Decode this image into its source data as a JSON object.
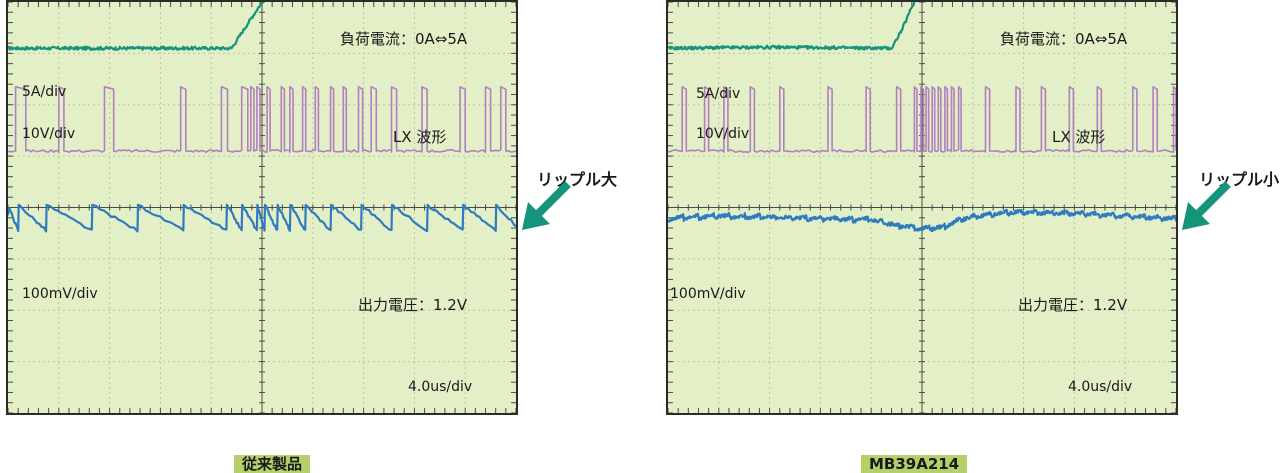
{
  "chart_data": [
    {
      "type": "line",
      "caption": "従来製品",
      "load_label": "負荷電流：0A⇔5A",
      "time_div_label": "4.0us/div",
      "grid": {
        "divisions_x": 10,
        "divisions_y": 8
      },
      "series": [
        {
          "name": "5A/div",
          "color": "#14947a",
          "x": [
            0,
            2.0,
            4.4,
            4.6,
            4.8,
            5.0,
            5.3,
            5.7,
            6.2,
            7.0,
            8.0,
            10
          ],
          "y": [
            7.1,
            7.1,
            7.1,
            7.4,
            7.7,
            8.0,
            8.25,
            8.45,
            8.55,
            8.6,
            8.65,
            8.65
          ]
        },
        {
          "name": "10V/div",
          "label": "LX 波形",
          "color": "#b27fbf",
          "pulse_type": "lx",
          "baseline_y": 5.1,
          "high_y": 6.35,
          "pulse_starts": [
            0.15,
            1.0,
            1.9,
            3.4,
            4.2,
            4.6,
            4.78,
            4.9,
            5.1,
            5.38,
            5.55,
            5.8,
            6.05,
            6.35,
            6.6,
            6.9,
            7.15,
            7.55,
            8.15,
            8.9,
            9.4,
            9.7
          ],
          "pulse_widths": [
            0.2,
            0.1,
            0.18,
            0.1,
            0.12,
            0.12,
            0.06,
            0.06,
            0.06,
            0.06,
            0.06,
            0.06,
            0.06,
            0.06,
            0.06,
            0.08,
            0.1,
            0.1,
            0.1,
            0.1,
            0.1,
            0.1
          ]
        },
        {
          "name": "100mV/div",
          "label": "出力電圧：1.2V",
          "color": "#2e7bbf",
          "pulse_type": "ripple",
          "reset_times": [
            0.2,
            0.75,
            1.65,
            2.55,
            3.45,
            4.3,
            4.6,
            4.9,
            5.05,
            5.3,
            5.55,
            5.85,
            6.35,
            6.95,
            7.55,
            8.25,
            8.95,
            9.6
          ],
          "ripple_high": 4.05,
          "ripple_low": 3.55
        }
      ]
    },
    {
      "type": "line",
      "caption": "MB39A214",
      "load_label": "負荷電流：0A⇔5A",
      "time_div_label": "4.0us/div",
      "grid": {
        "divisions_x": 10,
        "divisions_y": 8
      },
      "series": [
        {
          "name": "5A/div",
          "color": "#14947a",
          "x": [
            0,
            2.0,
            4.4,
            4.6,
            4.8,
            5.0,
            5.3,
            5.6,
            6.0,
            7.0,
            8.0,
            10
          ],
          "y": [
            7.1,
            7.12,
            7.1,
            7.45,
            7.9,
            8.3,
            8.6,
            8.65,
            8.65,
            8.65,
            8.65,
            8.65
          ]
        },
        {
          "name": "10V/div",
          "label": "LX 波形",
          "color": "#b27fbf",
          "pulse_type": "lx",
          "baseline_y": 5.1,
          "high_y": 6.35,
          "pulse_starts": [
            0.28,
            0.72,
            1.1,
            1.62,
            2.2,
            3.15,
            3.9,
            4.5,
            4.85,
            4.98,
            5.08,
            5.2,
            5.32,
            5.45,
            5.58,
            5.72,
            6.25,
            6.85,
            7.35,
            7.9,
            8.45,
            9.15,
            9.55,
            9.95
          ],
          "pulse_widths": [
            0.08,
            0.08,
            0.08,
            0.08,
            0.08,
            0.08,
            0.08,
            0.08,
            0.05,
            0.05,
            0.05,
            0.05,
            0.05,
            0.05,
            0.05,
            0.05,
            0.08,
            0.08,
            0.08,
            0.08,
            0.08,
            0.08,
            0.08,
            0.05
          ]
        },
        {
          "name": "100mV/div",
          "label": "出力電圧：1.2V",
          "color": "#2e7bbf",
          "pulse_type": "ripple",
          "x": [
            0,
            1.0,
            2.0,
            3.0,
            4.0,
            4.5,
            5.0,
            5.4,
            5.8,
            6.5,
            7.0,
            8.0,
            9.0,
            10
          ],
          "y": [
            3.75,
            3.8,
            3.78,
            3.75,
            3.72,
            3.62,
            3.55,
            3.58,
            3.75,
            3.85,
            3.88,
            3.85,
            3.8,
            3.75
          ],
          "ripple_amplitude": 0.07
        }
      ]
    }
  ],
  "annotations": {
    "left_callout": "リップル大",
    "right_callout": "リップル小",
    "arrow_color": "#14947a"
  }
}
